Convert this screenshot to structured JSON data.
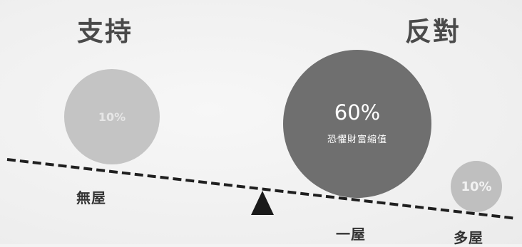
{
  "headings": {
    "support": "支持",
    "oppose": "反對"
  },
  "bubbles": {
    "left": {
      "percent": "10%"
    },
    "middle": {
      "percent": "60%",
      "caption": "恐懼財富縮值"
    },
    "right": {
      "percent": "10%"
    }
  },
  "labels": {
    "no_property": "無屋",
    "one_property": "一屋",
    "multi_property": "多屋"
  }
}
